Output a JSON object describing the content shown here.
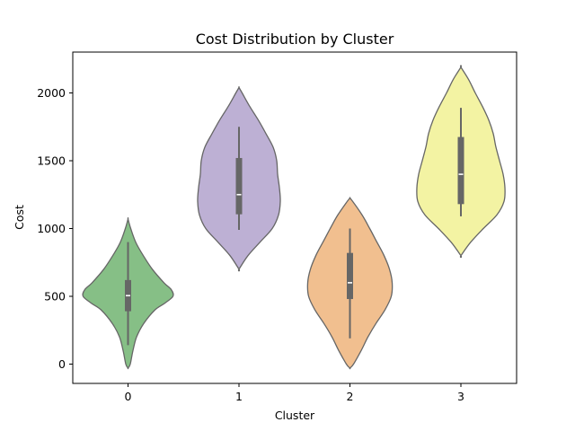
{
  "chart_data": {
    "type": "violin",
    "title": "Cost Distribution by Cluster",
    "xlabel": "Cluster",
    "ylabel": "Cost",
    "categories": [
      "0",
      "1",
      "2",
      "3"
    ],
    "ylim": [
      -140,
      2320
    ],
    "yticks": [
      0,
      500,
      1000,
      1500,
      2000
    ],
    "grid": false,
    "legend": "none",
    "series": [
      {
        "category": "0",
        "color": "#86bf86",
        "profile": [
          [
            -30,
            0
          ],
          [
            0,
            0.05
          ],
          [
            100,
            0.11
          ],
          [
            200,
            0.19
          ],
          [
            300,
            0.35
          ],
          [
            400,
            0.6
          ],
          [
            450,
            0.82
          ],
          [
            500,
            1.0
          ],
          [
            550,
            0.96
          ],
          [
            600,
            0.8
          ],
          [
            700,
            0.54
          ],
          [
            800,
            0.34
          ],
          [
            900,
            0.17
          ],
          [
            1000,
            0.06
          ],
          [
            1070,
            0
          ]
        ],
        "box": {
          "q1": 390,
          "median": 505,
          "q3": 620,
          "whisker_low": 140,
          "whisker_high": 900
        }
      },
      {
        "category": "1",
        "color": "#bdb0d4",
        "profile": [
          [
            700,
            0
          ],
          [
            800,
            0.2
          ],
          [
            900,
            0.47
          ],
          [
            1000,
            0.74
          ],
          [
            1100,
            0.88
          ],
          [
            1200,
            0.92
          ],
          [
            1300,
            0.9
          ],
          [
            1400,
            0.86
          ],
          [
            1500,
            0.84
          ],
          [
            1600,
            0.76
          ],
          [
            1700,
            0.6
          ],
          [
            1800,
            0.43
          ],
          [
            1900,
            0.24
          ],
          [
            2000,
            0.07
          ],
          [
            2040,
            0
          ]
        ],
        "box": {
          "q1": 1105,
          "median": 1250,
          "q3": 1520,
          "whisker_low": 990,
          "whisker_high": 1750
        }
      },
      {
        "category": "2",
        "color": "#f1bf8f",
        "profile": [
          [
            -30,
            0
          ],
          [
            0,
            0.08
          ],
          [
            100,
            0.25
          ],
          [
            200,
            0.4
          ],
          [
            300,
            0.58
          ],
          [
            400,
            0.78
          ],
          [
            500,
            0.92
          ],
          [
            600,
            0.94
          ],
          [
            700,
            0.88
          ],
          [
            800,
            0.76
          ],
          [
            900,
            0.6
          ],
          [
            1000,
            0.44
          ],
          [
            1100,
            0.27
          ],
          [
            1200,
            0.06
          ],
          [
            1225,
            0
          ]
        ],
        "box": {
          "q1": 480,
          "median": 600,
          "q3": 820,
          "whisker_low": 190,
          "whisker_high": 1000
        }
      },
      {
        "category": "3",
        "color": "#f3f3a3",
        "profile": [
          [
            800,
            0
          ],
          [
            900,
            0.22
          ],
          [
            1000,
            0.5
          ],
          [
            1100,
            0.8
          ],
          [
            1200,
            0.96
          ],
          [
            1300,
            0.98
          ],
          [
            1400,
            0.94
          ],
          [
            1500,
            0.86
          ],
          [
            1600,
            0.78
          ],
          [
            1700,
            0.72
          ],
          [
            1800,
            0.62
          ],
          [
            1900,
            0.48
          ],
          [
            2000,
            0.32
          ],
          [
            2100,
            0.17
          ],
          [
            2190,
            0
          ]
        ],
        "box": {
          "q1": 1180,
          "median": 1400,
          "q3": 1675,
          "whisker_low": 1090,
          "whisker_high": 1890
        }
      }
    ]
  }
}
